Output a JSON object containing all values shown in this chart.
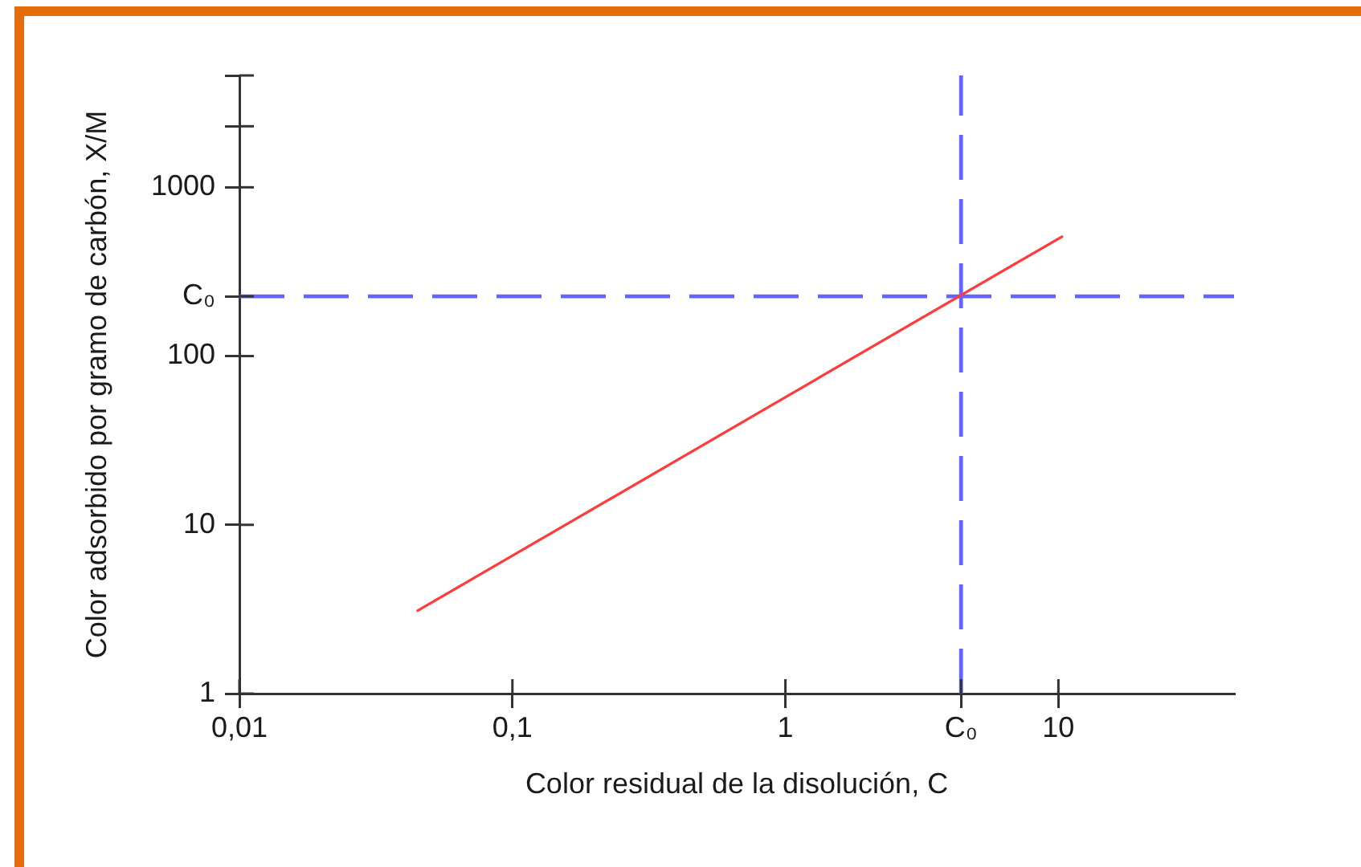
{
  "chart_data": {
    "type": "line",
    "xlabel": "Color residual de la disolución, C",
    "ylabel": "Color adsorbido por gramo de carbón, X/M",
    "log": "xy",
    "xlim": [
      0.01,
      44
    ],
    "ylim": [
      1,
      4600
    ],
    "xticks": [
      {
        "value": 0.01,
        "label": "0,01"
      },
      {
        "value": 0.1,
        "label": "0,1"
      },
      1,
      {
        "value": 4.4,
        "label": "C₀"
      },
      10
    ],
    "yticks": [
      1,
      10,
      100,
      {
        "value": 226,
        "label": "C₀"
      },
      1000,
      {
        "value": 2300,
        "label": null
      },
      {
        "value": 4600,
        "label": null
      }
    ],
    "series": [
      {
        "color": "#ff3b3b",
        "x": [
          0.045,
          10.3
        ],
        "values": [
          3.1,
          510
        ]
      }
    ],
    "ref_lines": [
      {
        "axis": "y",
        "value": 226,
        "color": "#6464ff",
        "line_style": "dashed"
      },
      {
        "axis": "x",
        "value": 4.4,
        "color": "#6464ff",
        "line_style": "dashed"
      }
    ],
    "grid": false,
    "legend": false
  }
}
